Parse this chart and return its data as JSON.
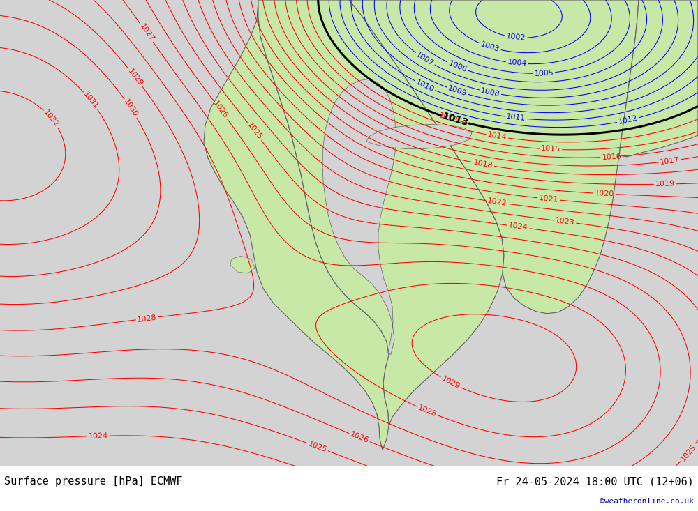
{
  "title_left": "Surface pressure [hPa] ECMWF",
  "title_right": "Fr 24-05-2024 18:00 UTC (12+06)",
  "watermark": "©weatheronline.co.uk",
  "bg_color_ocean": "#d3d3d3",
  "bg_color_land": "#c8e8a8",
  "contour_color_high": "#ff0000",
  "contour_color_low": "#0000ff",
  "contour_color_boundary": "#000000",
  "boundary_level": 1013,
  "label_fontsize": 8,
  "title_fontsize": 11,
  "watermark_fontsize": 8,
  "watermark_color": "#0000bb"
}
